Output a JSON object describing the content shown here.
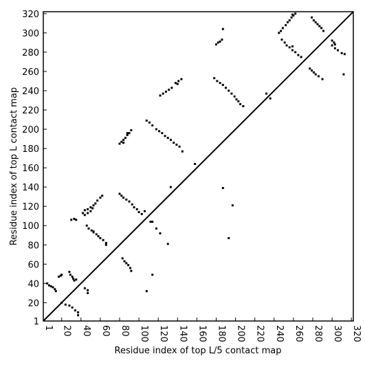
{
  "chart_data": {
    "type": "scatter",
    "xlabel": "Residue index of top L/5 contact map",
    "ylabel": "Residue index of top L contact map",
    "xlim": [
      1,
      322
    ],
    "ylim": [
      1,
      322
    ],
    "xticks": [
      1,
      20,
      40,
      60,
      80,
      100,
      120,
      140,
      160,
      180,
      200,
      220,
      240,
      260,
      280,
      300,
      320
    ],
    "yticks": [
      1,
      20,
      40,
      60,
      80,
      100,
      120,
      140,
      160,
      180,
      200,
      220,
      240,
      260,
      280,
      300,
      320
    ],
    "color": "#000000",
    "x": [
      5,
      7,
      9,
      11,
      13,
      14,
      17,
      19,
      20,
      28,
      29,
      31,
      32,
      33,
      35,
      30,
      33,
      35,
      42,
      44,
      47,
      50,
      53,
      55,
      57,
      60,
      62,
      44,
      47,
      50,
      52,
      80,
      82,
      84,
      86,
      88,
      90,
      92,
      84,
      88,
      122,
      125,
      128,
      131,
      134,
      138,
      141,
      144,
      140,
      180,
      182,
      184,
      186,
      187,
      245,
      247,
      249,
      252,
      254,
      256,
      258,
      260,
      262,
      259,
      279,
      281,
      283,
      285,
      287,
      289,
      291,
      300,
      302,
      303,
      158,
      133,
      20,
      24,
      28,
      31,
      34,
      37,
      37,
      44,
      47,
      47,
      46,
      48,
      51,
      53,
      56,
      58,
      60,
      63,
      66,
      66,
      53,
      80,
      82,
      84,
      87,
      90,
      93,
      95,
      98,
      100,
      103,
      106,
      112,
      114,
      118,
      122,
      83,
      85,
      87,
      89,
      91,
      92,
      114,
      108,
      108,
      111,
      114,
      118,
      121,
      124,
      127,
      130,
      133,
      136,
      139,
      142,
      145,
      178,
      181,
      184,
      187,
      190,
      193,
      196,
      199,
      201,
      203,
      205,
      208,
      232,
      236,
      187,
      197,
      193,
      130,
      248,
      251,
      253,
      256,
      259,
      262,
      265,
      268,
      259,
      277,
      279,
      281,
      283,
      286,
      290,
      300,
      303,
      306,
      310,
      313,
      312
    ],
    "values": [
      40,
      38,
      37,
      36,
      34,
      32,
      47,
      48,
      49,
      52,
      49,
      47,
      45,
      43,
      44,
      106,
      107,
      106,
      113,
      116,
      117,
      119,
      121,
      123,
      126,
      129,
      131,
      111,
      113,
      115,
      118,
      185,
      187,
      189,
      191,
      194,
      196,
      199,
      186,
      196,
      235,
      237,
      239,
      241,
      243,
      248,
      250,
      252,
      247,
      288,
      290,
      291,
      293,
      304,
      300,
      302,
      305,
      308,
      311,
      313,
      316,
      318,
      320,
      319,
      316,
      313,
      311,
      309,
      307,
      305,
      302,
      292,
      290,
      288,
      164,
      140,
      20,
      18,
      17,
      15,
      12,
      10,
      7,
      35,
      33,
      30,
      100,
      97,
      95,
      93,
      91,
      89,
      87,
      85,
      82,
      80,
      94,
      133,
      131,
      129,
      127,
      125,
      122,
      119,
      117,
      114,
      112,
      115,
      104,
      104,
      97,
      92,
      66,
      63,
      61,
      59,
      56,
      53,
      49,
      32,
      209,
      207,
      204,
      200,
      198,
      196,
      193,
      191,
      189,
      186,
      184,
      182,
      177,
      253,
      250,
      248,
      246,
      243,
      240,
      237,
      234,
      231,
      229,
      226,
      224,
      237,
      232,
      139,
      121,
      87,
      81,
      293,
      290,
      287,
      285,
      282,
      280,
      277,
      275,
      286,
      263,
      261,
      259,
      257,
      255,
      252,
      287,
      284,
      282,
      279,
      278,
      257
    ]
  }
}
